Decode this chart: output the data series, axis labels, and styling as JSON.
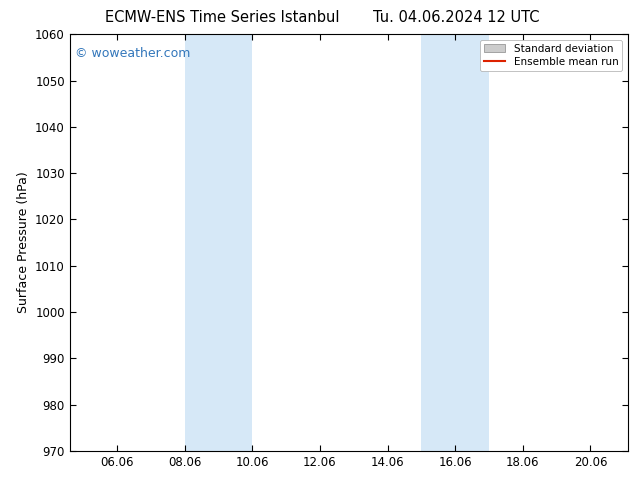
{
  "title_left": "ECMW-ENS Time Series Istanbul",
  "title_right": "Tu. 04.06.2024 12 UTC",
  "ylabel": "Surface Pressure (hPa)",
  "ylim": [
    970,
    1060
  ],
  "yticks": [
    970,
    980,
    990,
    1000,
    1010,
    1020,
    1030,
    1040,
    1050,
    1060
  ],
  "xlim_start": 4.6,
  "xlim_end": 21.1,
  "xtick_labels": [
    "06.06",
    "08.06",
    "10.06",
    "12.06",
    "14.06",
    "16.06",
    "18.06",
    "20.06"
  ],
  "xtick_positions": [
    6,
    8,
    10,
    12,
    14,
    16,
    18,
    20
  ],
  "shaded_bands": [
    {
      "x_start": 8.0,
      "x_end": 10.0
    },
    {
      "x_start": 15.0,
      "x_end": 17.0
    }
  ],
  "shade_color": "#d6e8f7",
  "watermark_text": "© woweather.com",
  "watermark_color": "#3377bb",
  "watermark_fontsize": 9,
  "legend_labels": [
    "Standard deviation",
    "Ensemble mean run"
  ],
  "legend_patch_color": "#cccccc",
  "legend_line_color": "#dd2200",
  "bg_color": "#ffffff",
  "plot_bg_color": "#ffffff",
  "tick_label_fontsize": 8.5,
  "axis_label_fontsize": 9,
  "title_fontsize": 10.5
}
